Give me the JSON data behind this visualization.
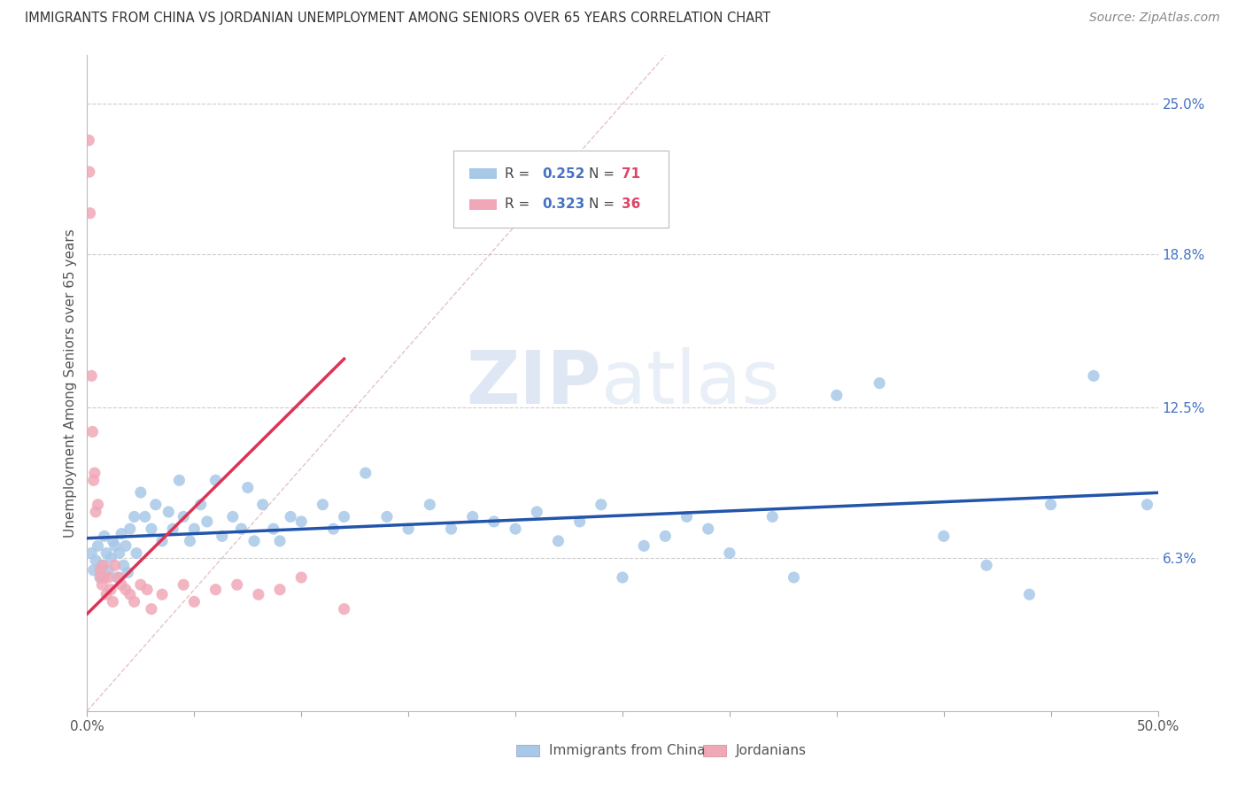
{
  "title": "IMMIGRANTS FROM CHINA VS JORDANIAN UNEMPLOYMENT AMONG SENIORS OVER 65 YEARS CORRELATION CHART",
  "source": "Source: ZipAtlas.com",
  "ylabel": "Unemployment Among Seniors over 65 years",
  "xmin": 0.0,
  "xmax": 50.0,
  "ymin": 0.0,
  "ymax": 27.0,
  "yticks_right": [
    6.3,
    12.5,
    18.8,
    25.0
  ],
  "ytick_labels_right": [
    "6.3%",
    "12.5%",
    "18.8%",
    "25.0%"
  ],
  "blue_color": "#a8c8e8",
  "pink_color": "#f0a8b8",
  "blue_line_color": "#2255aa",
  "pink_line_color": "#dd3355",
  "ref_line_color": "#ddaaaa",
  "r_color": "#4472c4",
  "n_color": "#dd4466",
  "blue_dots": [
    [
      0.2,
      6.5
    ],
    [
      0.3,
      5.8
    ],
    [
      0.4,
      6.2
    ],
    [
      0.5,
      6.8
    ],
    [
      0.6,
      5.5
    ],
    [
      0.7,
      6.0
    ],
    [
      0.8,
      7.2
    ],
    [
      0.9,
      6.5
    ],
    [
      1.0,
      5.8
    ],
    [
      1.1,
      6.3
    ],
    [
      1.2,
      7.0
    ],
    [
      1.3,
      6.8
    ],
    [
      1.4,
      5.5
    ],
    [
      1.5,
      6.5
    ],
    [
      1.6,
      7.3
    ],
    [
      1.7,
      6.0
    ],
    [
      1.8,
      6.8
    ],
    [
      1.9,
      5.7
    ],
    [
      2.0,
      7.5
    ],
    [
      2.2,
      8.0
    ],
    [
      2.3,
      6.5
    ],
    [
      2.5,
      9.0
    ],
    [
      2.7,
      8.0
    ],
    [
      3.0,
      7.5
    ],
    [
      3.2,
      8.5
    ],
    [
      3.5,
      7.0
    ],
    [
      3.8,
      8.2
    ],
    [
      4.0,
      7.5
    ],
    [
      4.3,
      9.5
    ],
    [
      4.5,
      8.0
    ],
    [
      4.8,
      7.0
    ],
    [
      5.0,
      7.5
    ],
    [
      5.3,
      8.5
    ],
    [
      5.6,
      7.8
    ],
    [
      6.0,
      9.5
    ],
    [
      6.3,
      7.2
    ],
    [
      6.8,
      8.0
    ],
    [
      7.2,
      7.5
    ],
    [
      7.5,
      9.2
    ],
    [
      7.8,
      7.0
    ],
    [
      8.2,
      8.5
    ],
    [
      8.7,
      7.5
    ],
    [
      9.0,
      7.0
    ],
    [
      9.5,
      8.0
    ],
    [
      10.0,
      7.8
    ],
    [
      11.0,
      8.5
    ],
    [
      11.5,
      7.5
    ],
    [
      12.0,
      8.0
    ],
    [
      13.0,
      9.8
    ],
    [
      14.0,
      8.0
    ],
    [
      15.0,
      7.5
    ],
    [
      16.0,
      8.5
    ],
    [
      17.0,
      7.5
    ],
    [
      18.0,
      8.0
    ],
    [
      19.0,
      7.8
    ],
    [
      20.0,
      7.5
    ],
    [
      21.0,
      8.2
    ],
    [
      22.0,
      7.0
    ],
    [
      23.0,
      7.8
    ],
    [
      24.0,
      8.5
    ],
    [
      25.0,
      5.5
    ],
    [
      26.0,
      6.8
    ],
    [
      27.0,
      7.2
    ],
    [
      28.0,
      8.0
    ],
    [
      29.0,
      7.5
    ],
    [
      30.0,
      6.5
    ],
    [
      32.0,
      8.0
    ],
    [
      33.0,
      5.5
    ],
    [
      35.0,
      13.0
    ],
    [
      37.0,
      13.5
    ],
    [
      40.0,
      7.2
    ],
    [
      42.0,
      6.0
    ],
    [
      44.0,
      4.8
    ],
    [
      45.0,
      8.5
    ],
    [
      47.0,
      13.8
    ],
    [
      49.5,
      8.5
    ]
  ],
  "pink_dots": [
    [
      0.08,
      23.5
    ],
    [
      0.1,
      22.2
    ],
    [
      0.13,
      20.5
    ],
    [
      0.2,
      13.8
    ],
    [
      0.25,
      11.5
    ],
    [
      0.3,
      9.5
    ],
    [
      0.35,
      9.8
    ],
    [
      0.4,
      8.2
    ],
    [
      0.5,
      8.5
    ],
    [
      0.6,
      5.8
    ],
    [
      0.65,
      5.5
    ],
    [
      0.7,
      5.2
    ],
    [
      0.75,
      6.0
    ],
    [
      0.8,
      5.5
    ],
    [
      0.9,
      4.8
    ],
    [
      1.0,
      5.5
    ],
    [
      1.1,
      5.0
    ],
    [
      1.2,
      4.5
    ],
    [
      1.3,
      6.0
    ],
    [
      1.5,
      5.5
    ],
    [
      1.6,
      5.2
    ],
    [
      1.8,
      5.0
    ],
    [
      2.0,
      4.8
    ],
    [
      2.2,
      4.5
    ],
    [
      2.5,
      5.2
    ],
    [
      2.8,
      5.0
    ],
    [
      3.0,
      4.2
    ],
    [
      3.5,
      4.8
    ],
    [
      4.5,
      5.2
    ],
    [
      5.0,
      4.5
    ],
    [
      6.0,
      5.0
    ],
    [
      7.0,
      5.2
    ],
    [
      8.0,
      4.8
    ],
    [
      9.0,
      5.0
    ],
    [
      10.0,
      5.5
    ],
    [
      12.0,
      4.2
    ]
  ],
  "pink_trend_x": [
    0.08,
    12.0
  ],
  "ref_line_x": [
    0.0,
    27.0
  ],
  "ref_line_y": [
    0.0,
    27.0
  ]
}
